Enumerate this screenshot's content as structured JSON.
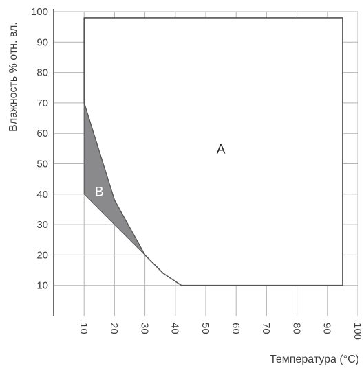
{
  "chart_data": {
    "type": "area",
    "xlabel": "Температура (°C)",
    "ylabel": "Влажность % отн. вл.",
    "xlim": [
      0,
      100
    ],
    "ylim": [
      0,
      100
    ],
    "x_ticks": [
      "10",
      "20",
      "30",
      "40",
      "50",
      "60",
      "70",
      "80",
      "90",
      "100"
    ],
    "y_ticks": [
      "10",
      "20",
      "30",
      "40",
      "50",
      "60",
      "70",
      "80",
      "90",
      "100"
    ],
    "grid": true,
    "regions": [
      {
        "label": "A",
        "label_at": [
          55,
          55
        ],
        "fill": "#ffffff",
        "points": [
          [
            10,
            70
          ],
          [
            20,
            38
          ],
          [
            30,
            20
          ],
          [
            36,
            14
          ],
          [
            42,
            10
          ],
          [
            95,
            10
          ],
          [
            95,
            98
          ],
          [
            10,
            98
          ]
        ]
      },
      {
        "label": "B",
        "label_at": [
          15,
          41
        ],
        "fill": "#8a8a8c",
        "points": [
          [
            10,
            70
          ],
          [
            20,
            38
          ],
          [
            30,
            20
          ],
          [
            10,
            40
          ]
        ]
      }
    ],
    "colors": {
      "axis": "#3c3c3c",
      "grid": "#b4b4b4",
      "outline": "#555555",
      "shade": "#8a8a8c",
      "label_on_shade": "#ffffff"
    }
  }
}
